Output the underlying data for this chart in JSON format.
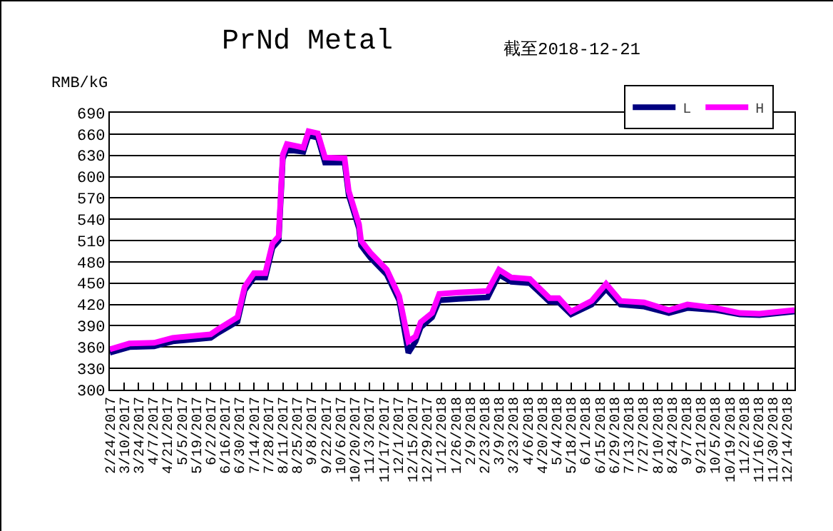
{
  "chart_data": {
    "type": "line",
    "title": "PrNd Metal",
    "subtitle": "截至2018-12-21",
    "ylabel": "RMB/kG",
    "x": [
      "2017-02-24",
      "2017-03-15",
      "2017-04-08",
      "2017-04-26",
      "2017-06-02",
      "2017-06-09",
      "2017-06-28",
      "2017-07-05",
      "2017-07-14",
      "2017-07-25",
      "2017-08-01",
      "2017-08-07",
      "2017-08-11",
      "2017-08-15",
      "2017-08-31",
      "2017-09-05",
      "2017-09-14",
      "2017-09-21",
      "2017-10-10",
      "2017-10-14",
      "2017-10-24",
      "2017-10-26",
      "2017-11-04",
      "2017-11-20",
      "2017-12-02",
      "2017-12-11",
      "2017-12-18",
      "2017-12-23",
      "2018-01-03",
      "2018-01-10",
      "2018-01-29",
      "2018-02-26",
      "2018-03-09",
      "2018-03-21",
      "2018-04-08",
      "2018-04-27",
      "2018-05-06",
      "2018-05-18",
      "2018-06-07",
      "2018-06-21",
      "2018-07-05",
      "2018-07-28",
      "2018-08-21",
      "2018-09-08",
      "2018-10-06",
      "2018-10-29",
      "2018-11-17",
      "2018-12-21"
    ],
    "series": [
      {
        "name": "L",
        "color": "#000080",
        "values": [
          352,
          360,
          361,
          368,
          373,
          380,
          396,
          440,
          458,
          458,
          500,
          510,
          625,
          638,
          635,
          658,
          655,
          620,
          620,
          574,
          527,
          503,
          486,
          462,
          426,
          352,
          368,
          388,
          402,
          426,
          428,
          430,
          462,
          452,
          450,
          424,
          423,
          406,
          420,
          442,
          420,
          417,
          408,
          415,
          412,
          406,
          405,
          410
        ]
      },
      {
        "name": "H",
        "color": "#ff00ff",
        "values": [
          357,
          365,
          366,
          373,
          378,
          385,
          402,
          445,
          464,
          464,
          506,
          516,
          631,
          646,
          641,
          664,
          661,
          627,
          626,
          580,
          533,
          510,
          493,
          469,
          432,
          368,
          375,
          395,
          408,
          435,
          437,
          439,
          469,
          458,
          456,
          429,
          429,
          410,
          425,
          449,
          425,
          423,
          412,
          420,
          415,
          408,
          407,
          412
        ]
      }
    ],
    "xlim": [
      "2017-02-24",
      "2018-12-21"
    ],
    "xticks": [
      {
        "value": "2017-02-24",
        "label": "2/24/2017"
      },
      {
        "value": "2017-03-10",
        "label": "3/10/2017"
      },
      {
        "value": "2017-03-24",
        "label": "3/24/2017"
      },
      {
        "value": "2017-04-07",
        "label": "4/7/2017"
      },
      {
        "value": "2017-04-21",
        "label": "4/21/2017"
      },
      {
        "value": "2017-05-05",
        "label": "5/5/2017"
      },
      {
        "value": "2017-05-19",
        "label": "5/19/2017"
      },
      {
        "value": "2017-06-02",
        "label": "6/2/2017"
      },
      {
        "value": "2017-06-16",
        "label": "6/16/2017"
      },
      {
        "value": "2017-06-30",
        "label": "6/30/2017"
      },
      {
        "value": "2017-07-14",
        "label": "7/14/2017"
      },
      {
        "value": "2017-07-28",
        "label": "7/28/2017"
      },
      {
        "value": "2017-08-11",
        "label": "8/11/2017"
      },
      {
        "value": "2017-08-25",
        "label": "8/25/2017"
      },
      {
        "value": "2017-09-08",
        "label": "9/8/2017"
      },
      {
        "value": "2017-09-22",
        "label": "9/22/2017"
      },
      {
        "value": "2017-10-06",
        "label": "10/6/2017"
      },
      {
        "value": "2017-10-20",
        "label": "10/20/2017"
      },
      {
        "value": "2017-11-03",
        "label": "11/3/2017"
      },
      {
        "value": "2017-11-17",
        "label": "11/17/2017"
      },
      {
        "value": "2017-12-01",
        "label": "12/1/2017"
      },
      {
        "value": "2017-12-15",
        "label": "12/15/2017"
      },
      {
        "value": "2017-12-29",
        "label": "12/29/2017"
      },
      {
        "value": "2018-01-12",
        "label": "1/12/2018"
      },
      {
        "value": "2018-01-26",
        "label": "1/26/2018"
      },
      {
        "value": "2018-02-09",
        "label": "2/9/2018"
      },
      {
        "value": "2018-02-23",
        "label": "2/23/2018"
      },
      {
        "value": "2018-03-09",
        "label": "3/9/2018"
      },
      {
        "value": "2018-03-23",
        "label": "3/23/2018"
      },
      {
        "value": "2018-04-06",
        "label": "4/6/2018"
      },
      {
        "value": "2018-04-20",
        "label": "4/20/2018"
      },
      {
        "value": "2018-05-04",
        "label": "5/4/2018"
      },
      {
        "value": "2018-05-18",
        "label": "5/18/2018"
      },
      {
        "value": "2018-06-01",
        "label": "6/1/2018"
      },
      {
        "value": "2018-06-15",
        "label": "6/15/2018"
      },
      {
        "value": "2018-06-29",
        "label": "6/29/2018"
      },
      {
        "value": "2018-07-13",
        "label": "7/13/2018"
      },
      {
        "value": "2018-07-27",
        "label": "7/27/2018"
      },
      {
        "value": "2018-08-10",
        "label": "8/10/2018"
      },
      {
        "value": "2018-08-24",
        "label": "8/24/2018"
      },
      {
        "value": "2018-09-07",
        "label": "9/7/2018"
      },
      {
        "value": "2018-09-21",
        "label": "9/21/2018"
      },
      {
        "value": "2018-10-05",
        "label": "10/5/2018"
      },
      {
        "value": "2018-10-19",
        "label": "10/19/2018"
      },
      {
        "value": "2018-11-02",
        "label": "11/2/2018"
      },
      {
        "value": "2018-11-16",
        "label": "11/16/2018"
      },
      {
        "value": "2018-11-30",
        "label": "11/30/2018"
      },
      {
        "value": "2018-12-14",
        "label": "12/14/2018"
      }
    ],
    "ylim": [
      300,
      690
    ],
    "yticks": [
      300,
      330,
      360,
      390,
      420,
      450,
      480,
      510,
      540,
      570,
      600,
      630,
      660,
      690
    ],
    "grid": "y",
    "legend": "top right",
    "marker": "none",
    "line_style": "solid"
  }
}
